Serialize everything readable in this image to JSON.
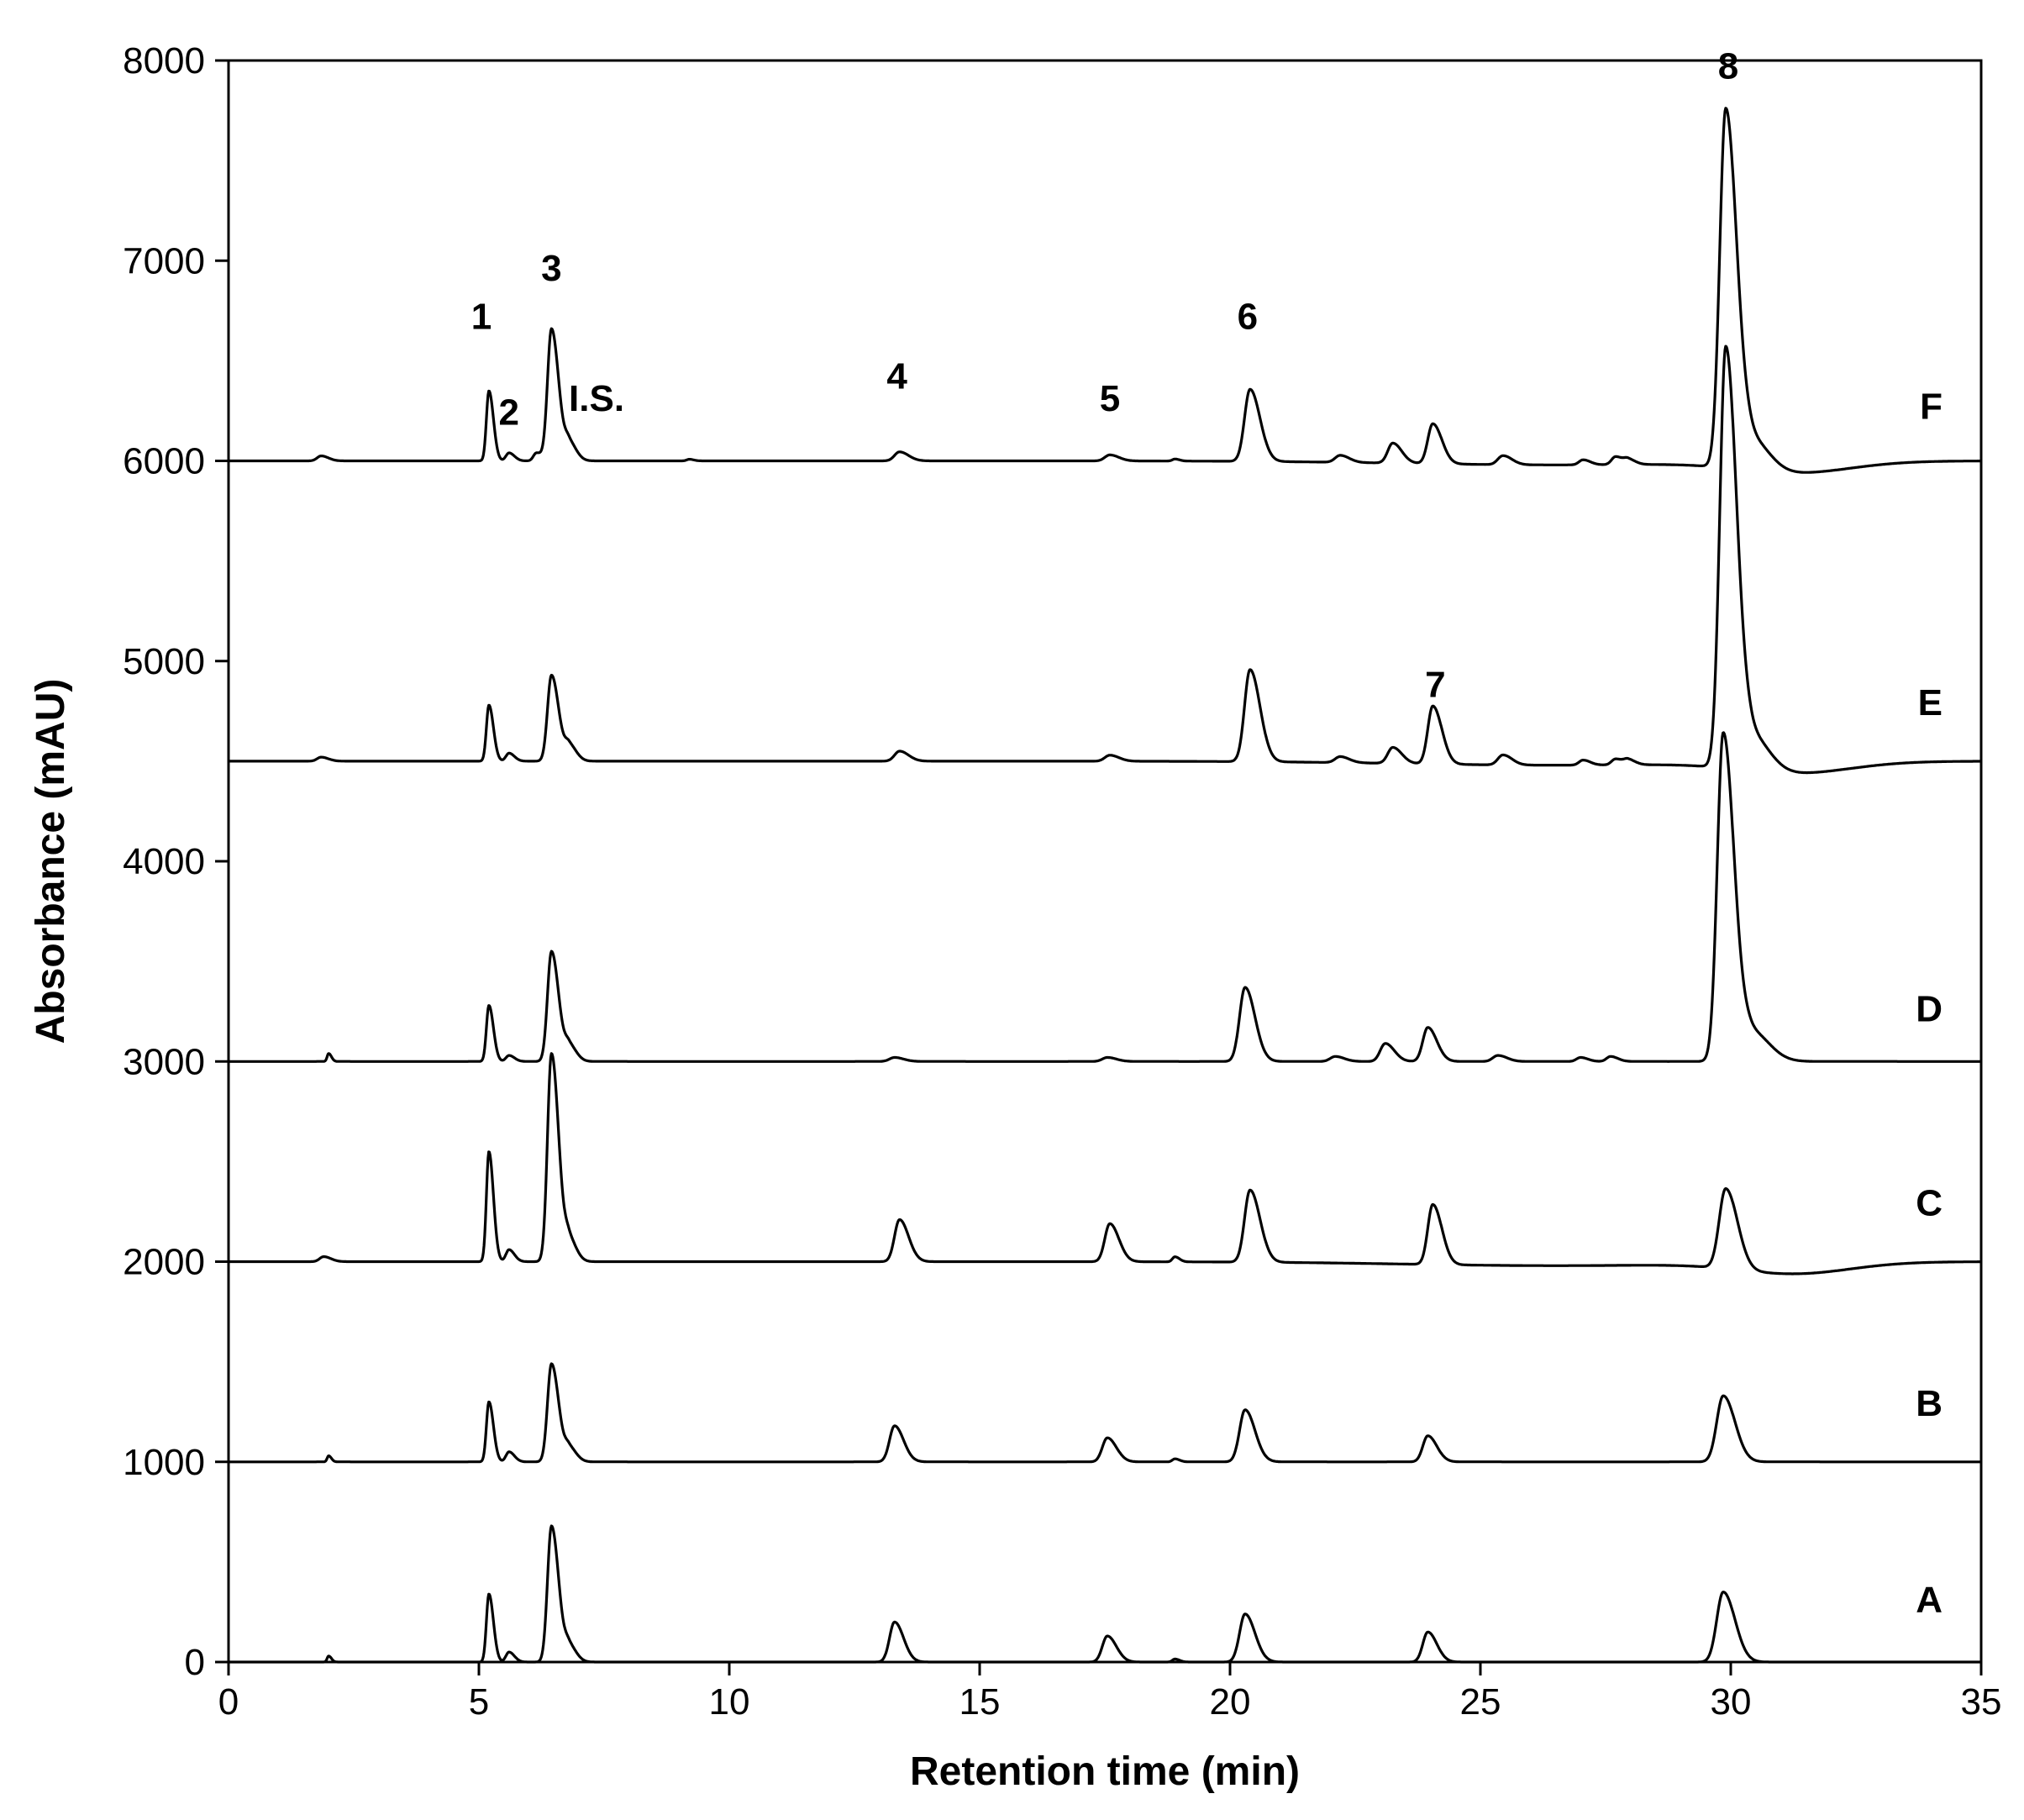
{
  "chart_data": {
    "type": "line",
    "title": "",
    "xlabel": "Retention time (min)",
    "ylabel": "Absorbance (mAU)",
    "xlim": [
      0,
      35
    ],
    "ylim": [
      0,
      8000
    ],
    "xticks": [
      0,
      5,
      10,
      15,
      20,
      25,
      30,
      35
    ],
    "yticks": [
      0,
      1000,
      2000,
      3000,
      4000,
      5000,
      6000,
      7000,
      8000
    ],
    "grid": false,
    "line_color": "#000000",
    "series": [
      {
        "name": "A",
        "baseline": 0,
        "baseline_drift": false,
        "peaks": [
          [
            2.0,
            30,
            0.03
          ],
          [
            5.2,
            340,
            0.05
          ],
          [
            5.6,
            50,
            0.06
          ],
          [
            6.45,
            680,
            0.08
          ],
          [
            6.8,
            80,
            0.08
          ],
          [
            13.3,
            200,
            0.1
          ],
          [
            17.55,
            130,
            0.1
          ],
          [
            18.9,
            15,
            0.05
          ],
          [
            20.3,
            240,
            0.11
          ],
          [
            23.95,
            150,
            0.1
          ],
          [
            29.85,
            350,
            0.13
          ]
        ]
      },
      {
        "name": "B",
        "baseline": 1000,
        "baseline_drift": false,
        "peaks": [
          [
            2.0,
            30,
            0.03
          ],
          [
            5.2,
            300,
            0.05
          ],
          [
            5.6,
            50,
            0.06
          ],
          [
            6.45,
            490,
            0.08
          ],
          [
            6.8,
            70,
            0.08
          ],
          [
            13.3,
            180,
            0.1
          ],
          [
            17.55,
            120,
            0.1
          ],
          [
            18.9,
            15,
            0.05
          ],
          [
            20.3,
            260,
            0.11
          ],
          [
            23.95,
            130,
            0.1
          ],
          [
            29.85,
            330,
            0.13
          ]
        ]
      },
      {
        "name": "C",
        "baseline": 2000,
        "baseline_drift": true,
        "peaks": [
          [
            1.9,
            25,
            0.08
          ],
          [
            5.2,
            550,
            0.05
          ],
          [
            5.6,
            60,
            0.06
          ],
          [
            6.45,
            1040,
            0.08
          ],
          [
            6.8,
            110,
            0.08
          ],
          [
            13.4,
            210,
            0.1
          ],
          [
            17.6,
            190,
            0.1
          ],
          [
            18.9,
            25,
            0.05
          ],
          [
            20.4,
            360,
            0.11
          ],
          [
            24.05,
            300,
            0.1
          ],
          [
            29.9,
            400,
            0.13
          ]
        ]
      },
      {
        "name": "D",
        "baseline": 3000,
        "baseline_drift": false,
        "peaks": [
          [
            2.0,
            40,
            0.03
          ],
          [
            5.2,
            280,
            0.05
          ],
          [
            5.6,
            30,
            0.06
          ],
          [
            6.45,
            550,
            0.08
          ],
          [
            6.8,
            80,
            0.08
          ],
          [
            13.3,
            20,
            0.1
          ],
          [
            17.55,
            20,
            0.1
          ],
          [
            20.3,
            370,
            0.11
          ],
          [
            22.1,
            25,
            0.1
          ],
          [
            23.1,
            90,
            0.1
          ],
          [
            23.95,
            170,
            0.1
          ],
          [
            25.35,
            30,
            0.1
          ],
          [
            27.0,
            20,
            0.08
          ],
          [
            27.6,
            25,
            0.08
          ],
          [
            29.85,
            1640,
            0.12
          ],
          [
            30.4,
            150,
            0.2
          ]
        ]
      },
      {
        "name": "E",
        "baseline": 4500,
        "baseline_drift": true,
        "peaks": [
          [
            1.85,
            20,
            0.08
          ],
          [
            5.2,
            280,
            0.05
          ],
          [
            5.6,
            40,
            0.06
          ],
          [
            6.45,
            430,
            0.08
          ],
          [
            6.8,
            80,
            0.08
          ],
          [
            13.4,
            50,
            0.1
          ],
          [
            17.6,
            30,
            0.1
          ],
          [
            20.4,
            460,
            0.11
          ],
          [
            22.2,
            30,
            0.1
          ],
          [
            23.25,
            80,
            0.1
          ],
          [
            24.05,
            290,
            0.1
          ],
          [
            25.45,
            50,
            0.1
          ],
          [
            27.05,
            25,
            0.08
          ],
          [
            27.7,
            30,
            0.08
          ],
          [
            27.95,
            25,
            0.08
          ],
          [
            29.9,
            2100,
            0.12
          ],
          [
            30.4,
            180,
            0.2
          ]
        ]
      },
      {
        "name": "F",
        "baseline": 6000,
        "baseline_drift": true,
        "peaks": [
          [
            1.85,
            25,
            0.08
          ],
          [
            5.2,
            350,
            0.05
          ],
          [
            5.6,
            40,
            0.06
          ],
          [
            6.15,
            40,
            0.06
          ],
          [
            6.45,
            660,
            0.08
          ],
          [
            6.8,
            90,
            0.08
          ],
          [
            9.2,
            8,
            0.05
          ],
          [
            13.4,
            45,
            0.1
          ],
          [
            17.6,
            30,
            0.1
          ],
          [
            18.9,
            10,
            0.05
          ],
          [
            20.4,
            360,
            0.11
          ],
          [
            22.2,
            35,
            0.1
          ],
          [
            23.25,
            100,
            0.1
          ],
          [
            24.05,
            200,
            0.1
          ],
          [
            25.45,
            45,
            0.1
          ],
          [
            27.05,
            25,
            0.08
          ],
          [
            27.7,
            40,
            0.08
          ],
          [
            27.95,
            25,
            0.08
          ],
          [
            29.9,
            1790,
            0.12
          ],
          [
            30.4,
            160,
            0.2
          ]
        ]
      }
    ],
    "trace_labels": [
      {
        "text": "A",
        "y": 250
      },
      {
        "text": "B",
        "y": 1230
      },
      {
        "text": "C",
        "y": 2230
      },
      {
        "text": "D",
        "y": 3200
      },
      {
        "text": "E",
        "y": 4730
      },
      {
        "text": "F",
        "y": 6210
      }
    ],
    "peak_labels": [
      {
        "text": "1",
        "x": 5.05,
        "y": 6660
      },
      {
        "text": "2",
        "x": 5.6,
        "y": 6180
      },
      {
        "text": "3",
        "x": 6.45,
        "y": 6900
      },
      {
        "text": "I.S.",
        "x": 7.35,
        "y": 6250
      },
      {
        "text": "4",
        "x": 13.35,
        "y": 6360
      },
      {
        "text": "5",
        "x": 17.6,
        "y": 6250
      },
      {
        "text": "6",
        "x": 20.35,
        "y": 6660
      },
      {
        "text": "7",
        "x": 24.1,
        "y": 4820
      },
      {
        "text": "8",
        "x": 29.95,
        "y": 7910
      }
    ]
  }
}
